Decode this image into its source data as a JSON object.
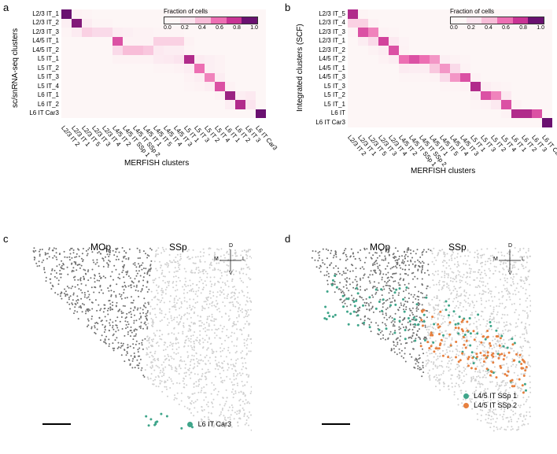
{
  "panel_labels": {
    "a": "a",
    "b": "b",
    "c": "c",
    "d": "d"
  },
  "colorscale": {
    "title": "Fraction of cells",
    "stops": [
      "#fdf6f6",
      "#fbe4ee",
      "#f8bdd8",
      "#ed6fb3",
      "#c93394",
      "#6a1170"
    ],
    "ticks": [
      "0.0",
      "0.2",
      "0.4",
      "0.6",
      "0.8",
      "1.0"
    ]
  },
  "heatmap_a": {
    "ylabel": "sc/snRNA-seq clusters",
    "xlabel": "MERFISH clusters",
    "rows": [
      "L2/3 IT_1",
      "L2/3 IT_2",
      "L2/3 IT_3",
      "L4/5 IT_1",
      "L4/5 IT_2",
      "L5 IT_1",
      "L5 IT_2",
      "L5 IT_3",
      "L5 IT_4",
      "L6 IT_1",
      "L6 IT_2",
      "L6 IT Car3"
    ],
    "cols": [
      "L2/3 IT 2",
      "L2/3 IT 1",
      "L2/3 IT 5",
      "L2/3 IT 3",
      "L2/3 IT 4",
      "L4/5 IT 2",
      "L4/5 IT SSp 1",
      "L4/5 IT SSp 2",
      "L4/5 IT 1",
      "L4/5 IT 5",
      "L4/5 IT 4",
      "L4/5 IT 3",
      "L5 IT 1",
      "L5 IT 3",
      "L5 IT 2",
      "L5 IT 4",
      "L6 IT 1",
      "L6 IT 2",
      "L6 IT 3",
      "L6 IT Car3"
    ],
    "cells": [
      [
        1.0,
        0.05,
        0.02,
        0.0,
        0.0,
        0.0,
        0.0,
        0.0,
        0.0,
        0.0,
        0.0,
        0.0,
        0.0,
        0.0,
        0.0,
        0.0,
        0.0,
        0.0,
        0.0,
        0.0
      ],
      [
        0.08,
        0.95,
        0.1,
        0.02,
        0.02,
        0.0,
        0.0,
        0.0,
        0.0,
        0.0,
        0.0,
        0.0,
        0.0,
        0.0,
        0.0,
        0.0,
        0.0,
        0.0,
        0.0,
        0.0
      ],
      [
        0.02,
        0.12,
        0.3,
        0.25,
        0.25,
        0.1,
        0.08,
        0.05,
        0.05,
        0.02,
        0.02,
        0.02,
        0.0,
        0.0,
        0.0,
        0.0,
        0.0,
        0.0,
        0.0,
        0.0
      ],
      [
        0.0,
        0.0,
        0.0,
        0.0,
        0.0,
        0.7,
        0.05,
        0.05,
        0.05,
        0.3,
        0.3,
        0.3,
        0.05,
        0.0,
        0.0,
        0.0,
        0.0,
        0.0,
        0.0,
        0.0
      ],
      [
        0.0,
        0.0,
        0.0,
        0.0,
        0.0,
        0.25,
        0.4,
        0.4,
        0.35,
        0.15,
        0.1,
        0.1,
        0.02,
        0.0,
        0.0,
        0.0,
        0.0,
        0.0,
        0.0,
        0.0
      ],
      [
        0.0,
        0.0,
        0.0,
        0.0,
        0.0,
        0.05,
        0.05,
        0.05,
        0.05,
        0.12,
        0.15,
        0.2,
        0.85,
        0.12,
        0.08,
        0.05,
        0.0,
        0.0,
        0.0,
        0.0
      ],
      [
        0.0,
        0.0,
        0.0,
        0.0,
        0.0,
        0.0,
        0.0,
        0.0,
        0.0,
        0.02,
        0.02,
        0.05,
        0.1,
        0.6,
        0.08,
        0.05,
        0.0,
        0.0,
        0.0,
        0.0
      ],
      [
        0.0,
        0.0,
        0.0,
        0.0,
        0.0,
        0.0,
        0.0,
        0.0,
        0.0,
        0.0,
        0.0,
        0.0,
        0.05,
        0.1,
        0.55,
        0.1,
        0.0,
        0.0,
        0.0,
        0.0
      ],
      [
        0.0,
        0.0,
        0.0,
        0.0,
        0.0,
        0.0,
        0.0,
        0.0,
        0.0,
        0.0,
        0.0,
        0.0,
        0.02,
        0.05,
        0.1,
        0.7,
        0.05,
        0.0,
        0.0,
        0.0
      ],
      [
        0.0,
        0.0,
        0.0,
        0.0,
        0.0,
        0.0,
        0.0,
        0.0,
        0.0,
        0.0,
        0.0,
        0.0,
        0.0,
        0.0,
        0.0,
        0.05,
        0.9,
        0.1,
        0.15,
        0.0
      ],
      [
        0.0,
        0.0,
        0.0,
        0.0,
        0.0,
        0.0,
        0.0,
        0.0,
        0.0,
        0.0,
        0.0,
        0.0,
        0.0,
        0.0,
        0.0,
        0.0,
        0.1,
        0.85,
        0.2,
        0.0
      ],
      [
        0.0,
        0.0,
        0.0,
        0.0,
        0.0,
        0.0,
        0.0,
        0.0,
        0.0,
        0.0,
        0.0,
        0.0,
        0.0,
        0.0,
        0.0,
        0.0,
        0.0,
        0.0,
        0.0,
        1.0
      ]
    ]
  },
  "heatmap_b": {
    "ylabel": "Integrated clusters (SCF)",
    "xlabel": "MERFISH clusters",
    "rows": [
      "L2/3 IT_5",
      "L2/3 IT_4",
      "L2/3 IT_3",
      "L2/3 IT_1",
      "L2/3 IT_2",
      "L4/5 IT_2",
      "L4/5 IT_1",
      "L4/5 IT_3",
      "L5 IT_3",
      "L5 IT_2",
      "L5 IT_1",
      "L6 IT",
      "L6 IT Car3"
    ],
    "cols": [
      "L2/3 IT 2",
      "L2/3 IT 1",
      "L2/3 IT 5",
      "L2/3 IT 3",
      "L2/3 IT 4",
      "L4/5 IT 2",
      "L4/5 IT SSp 1",
      "L4/5 IT SSp 2",
      "L4/5 IT 1",
      "L4/5 IT 5",
      "L4/5 IT 4",
      "L4/5 IT 3",
      "L5 IT 1",
      "L5 IT 3",
      "L5 IT 2",
      "L5 IT 4",
      "L6 IT 1",
      "L6 IT 2",
      "L6 IT 3",
      "L6 IT Car3"
    ],
    "cells": [
      [
        0.85,
        0.02,
        0.0,
        0.0,
        0.0,
        0.0,
        0.0,
        0.0,
        0.0,
        0.0,
        0.0,
        0.0,
        0.0,
        0.0,
        0.0,
        0.0,
        0.0,
        0.0,
        0.0,
        0.0
      ],
      [
        0.3,
        0.3,
        0.05,
        0.0,
        0.0,
        0.0,
        0.0,
        0.0,
        0.0,
        0.0,
        0.0,
        0.0,
        0.0,
        0.0,
        0.0,
        0.0,
        0.0,
        0.0,
        0.0,
        0.0
      ],
      [
        0.03,
        0.7,
        0.55,
        0.05,
        0.02,
        0.0,
        0.0,
        0.0,
        0.0,
        0.0,
        0.0,
        0.0,
        0.0,
        0.0,
        0.0,
        0.0,
        0.0,
        0.0,
        0.0,
        0.0
      ],
      [
        0.0,
        0.1,
        0.25,
        0.75,
        0.15,
        0.03,
        0.0,
        0.0,
        0.0,
        0.0,
        0.0,
        0.0,
        0.0,
        0.0,
        0.0,
        0.0,
        0.0,
        0.0,
        0.0,
        0.0
      ],
      [
        0.0,
        0.0,
        0.05,
        0.1,
        0.7,
        0.05,
        0.0,
        0.0,
        0.0,
        0.0,
        0.0,
        0.0,
        0.0,
        0.0,
        0.0,
        0.0,
        0.0,
        0.0,
        0.0,
        0.0
      ],
      [
        0.0,
        0.0,
        0.0,
        0.05,
        0.1,
        0.6,
        0.7,
        0.6,
        0.5,
        0.08,
        0.05,
        0.02,
        0.0,
        0.0,
        0.0,
        0.0,
        0.0,
        0.0,
        0.0,
        0.0
      ],
      [
        0.0,
        0.0,
        0.0,
        0.0,
        0.0,
        0.12,
        0.1,
        0.1,
        0.35,
        0.5,
        0.25,
        0.05,
        0.0,
        0.0,
        0.0,
        0.0,
        0.0,
        0.0,
        0.0,
        0.0
      ],
      [
        0.0,
        0.0,
        0.0,
        0.0,
        0.0,
        0.02,
        0.02,
        0.02,
        0.05,
        0.25,
        0.5,
        0.7,
        0.05,
        0.0,
        0.0,
        0.0,
        0.0,
        0.0,
        0.0,
        0.0
      ],
      [
        0.0,
        0.0,
        0.0,
        0.0,
        0.0,
        0.0,
        0.0,
        0.0,
        0.0,
        0.02,
        0.02,
        0.05,
        0.85,
        0.1,
        0.05,
        0.02,
        0.0,
        0.0,
        0.0,
        0.0
      ],
      [
        0.0,
        0.0,
        0.0,
        0.0,
        0.0,
        0.0,
        0.0,
        0.0,
        0.0,
        0.0,
        0.0,
        0.0,
        0.08,
        0.7,
        0.55,
        0.15,
        0.0,
        0.0,
        0.0,
        0.0
      ],
      [
        0.0,
        0.0,
        0.0,
        0.0,
        0.0,
        0.0,
        0.0,
        0.0,
        0.0,
        0.0,
        0.0,
        0.0,
        0.02,
        0.05,
        0.15,
        0.7,
        0.05,
        0.0,
        0.0,
        0.0
      ],
      [
        0.0,
        0.0,
        0.0,
        0.0,
        0.0,
        0.0,
        0.0,
        0.0,
        0.0,
        0.0,
        0.0,
        0.0,
        0.0,
        0.0,
        0.0,
        0.05,
        0.85,
        0.85,
        0.7,
        0.0
      ],
      [
        0.0,
        0.0,
        0.0,
        0.0,
        0.0,
        0.0,
        0.0,
        0.0,
        0.0,
        0.0,
        0.0,
        0.0,
        0.0,
        0.0,
        0.0,
        0.0,
        0.0,
        0.0,
        0.0,
        1.0
      ]
    ]
  },
  "scatter_c": {
    "regions": {
      "mop": "MOp",
      "ssp": "SSp"
    },
    "compass": {
      "d": "D",
      "v": "V",
      "m": "M",
      "l": "L"
    },
    "legend": [
      {
        "label": "L6 IT Car3",
        "color": "#3fa58a"
      }
    ],
    "background_gray_dark": "#6e6e6e",
    "background_gray_light": "#cfcfcf",
    "highlight": {
      "color": "#3fa58a",
      "band_y": [
        0.78,
        0.97
      ],
      "band_x": [
        0.52,
        0.9
      ],
      "n": 55
    },
    "n_gray": 1800,
    "dot_r": 1.0,
    "curve": 0.35
  },
  "scatter_d": {
    "regions": {
      "mop": "MOp",
      "ssp": "SSp"
    },
    "compass": {
      "d": "D",
      "v": "V",
      "m": "M",
      "l": "L"
    },
    "legend": [
      {
        "label": "L4/5 IT SSp 1",
        "color": "#3fa58a"
      },
      {
        "label": "L4/5 IT SSp 2",
        "color": "#e7803f"
      }
    ],
    "background_gray_dark": "#6e6e6e",
    "background_gray_light": "#cfcfcf",
    "highlights": [
      {
        "color": "#3fa58a",
        "band_y": [
          0.18,
          0.46
        ],
        "band_x": [
          0.04,
          0.98
        ],
        "n": 110
      },
      {
        "color": "#e7803f",
        "band_y": [
          0.24,
          0.48
        ],
        "band_x": [
          0.5,
          0.98
        ],
        "n": 120
      }
    ],
    "n_gray": 1800,
    "dot_r": 1.0,
    "curve": 0.35
  }
}
